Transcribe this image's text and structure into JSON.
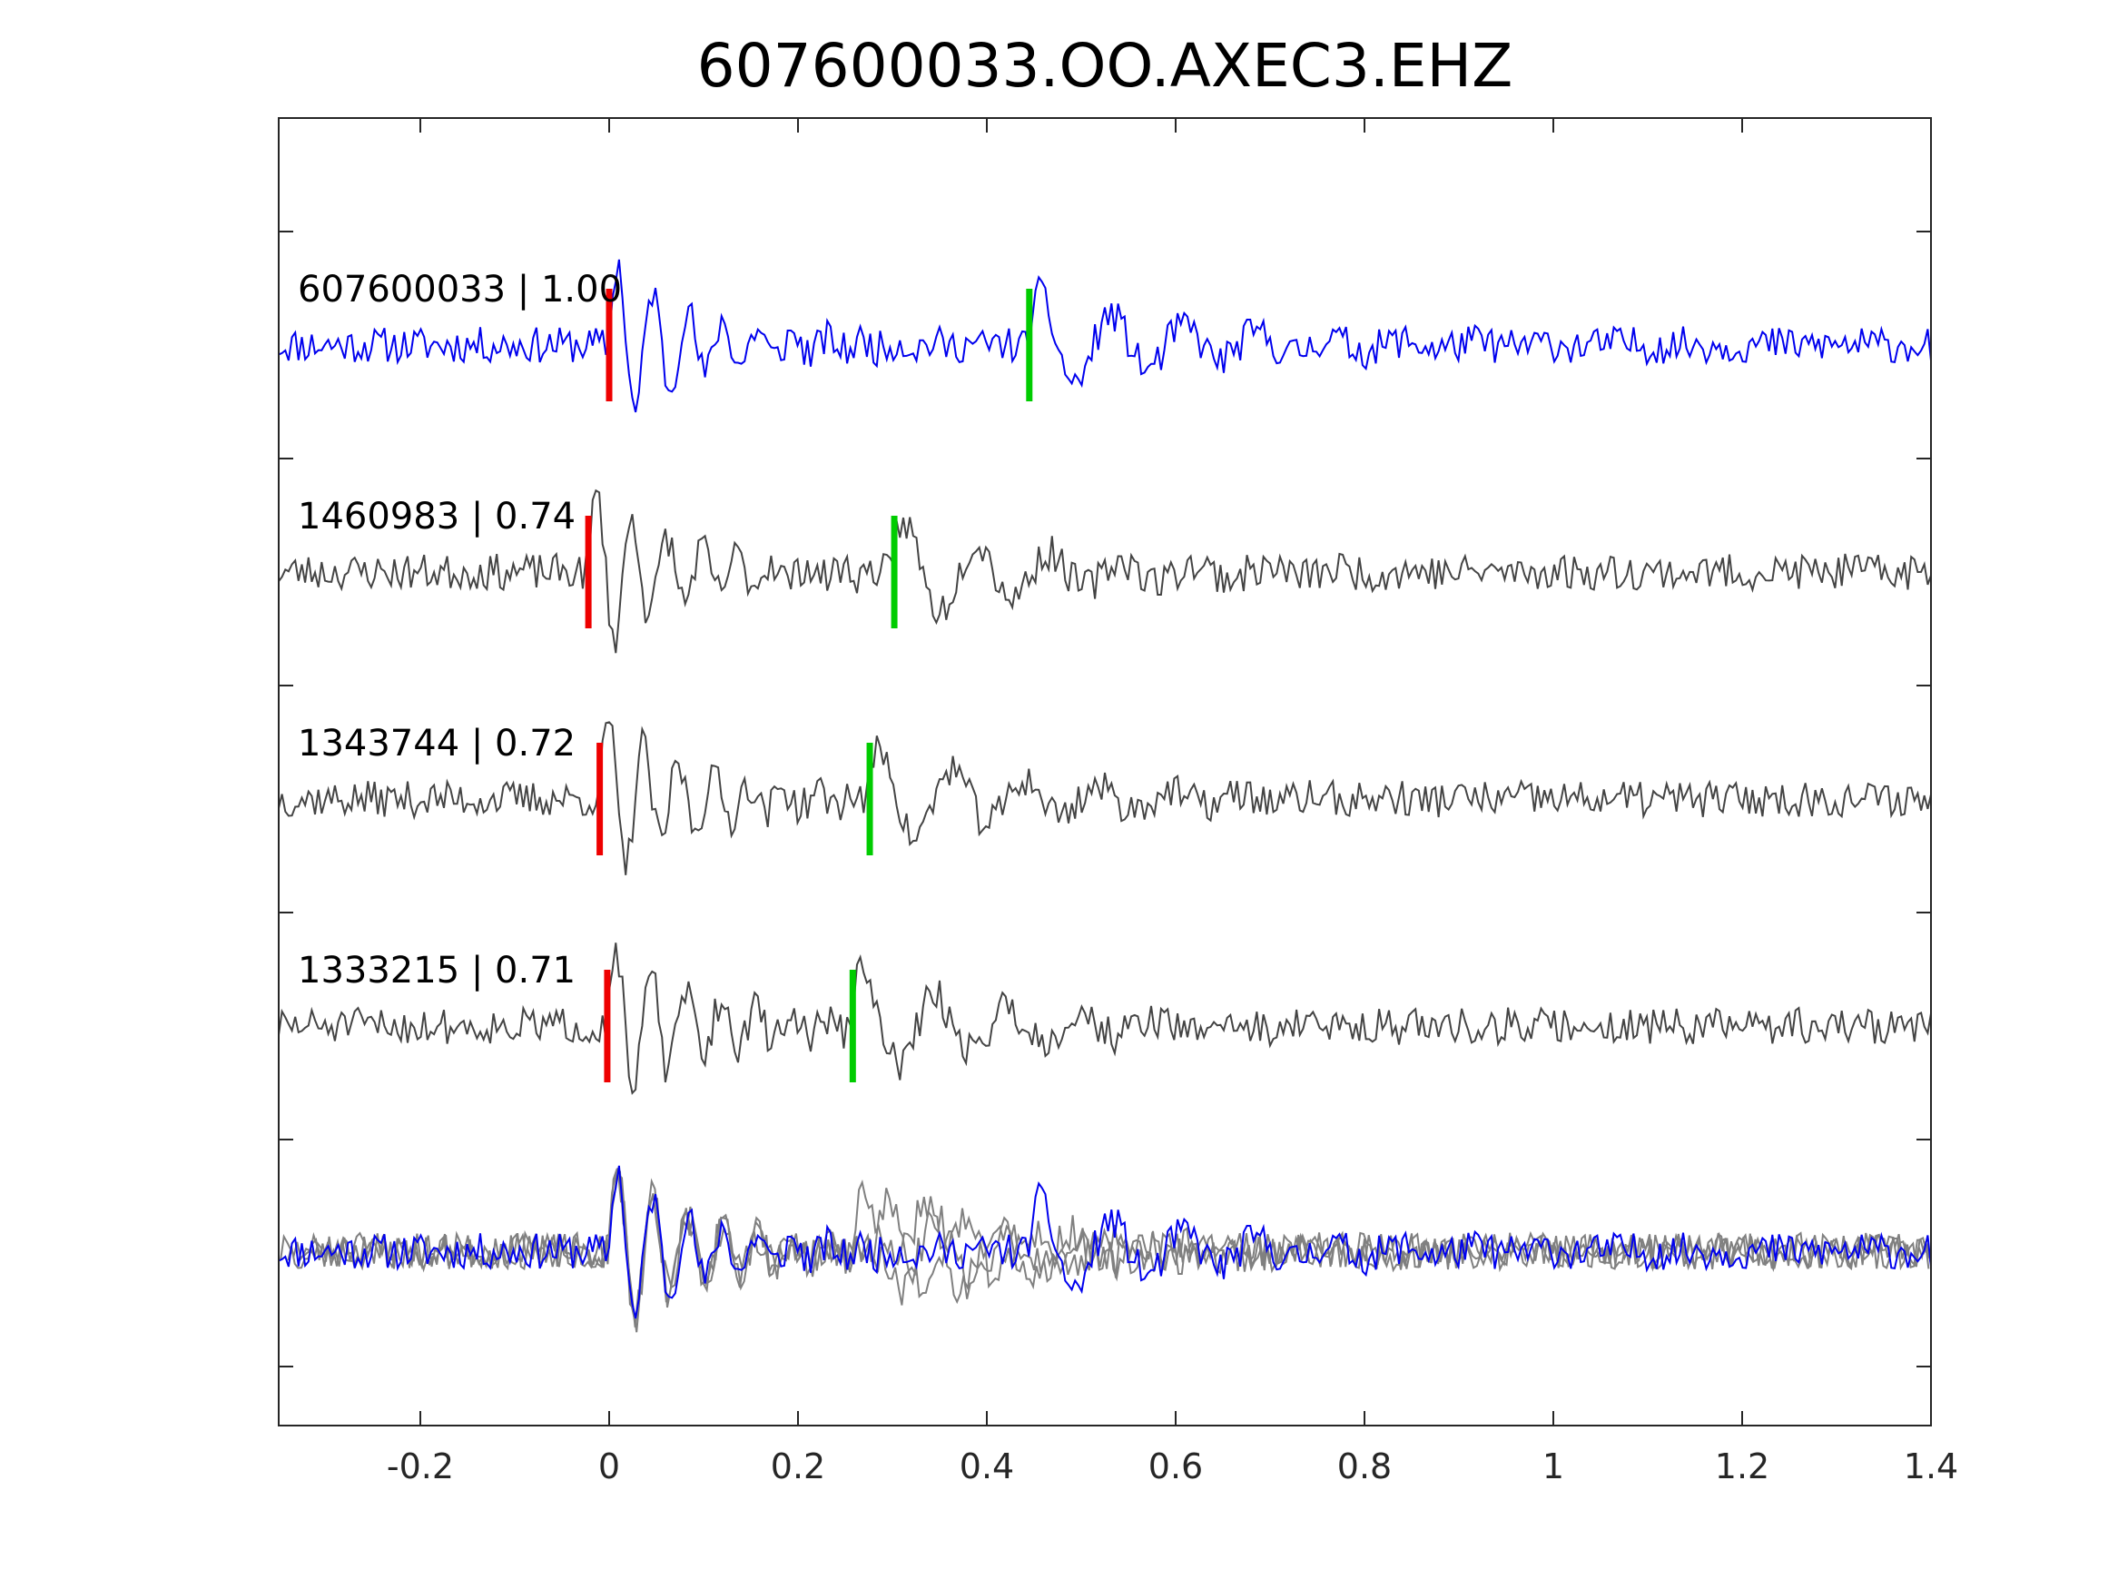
{
  "chart_data": {
    "type": "line",
    "title": "607600033.OO.AXEC3.EHZ",
    "xlabel": "",
    "ylabel": "",
    "xlim": [
      -0.35,
      1.4
    ],
    "xticks": [
      -0.2,
      0,
      0.2,
      0.4,
      0.6,
      0.8,
      1,
      1.2,
      1.4
    ],
    "xtick_labels": [
      "-0.2",
      "0",
      "0.2",
      "0.4",
      "0.6",
      "0.8",
      "1",
      "1.2",
      "1.4"
    ],
    "grid": false,
    "colors": {
      "master": "#0000ee",
      "trace": "#444444",
      "overlay_trace": "#808080",
      "p_pick": "#ee0000",
      "s_pick": "#00cc00",
      "axes": "#262626"
    },
    "traces": [
      {
        "id": "607600033",
        "cc": "1.00",
        "label": "607600033 | 1.00",
        "master": true,
        "p_time": 0.0,
        "s_time": 0.445,
        "seed": 11
      },
      {
        "id": "1460983",
        "cc": "0.74",
        "label": "1460983 | 0.74",
        "master": false,
        "p_time": -0.022,
        "s_time": 0.302,
        "seed": 23
      },
      {
        "id": "1343744",
        "cc": "0.72",
        "label": "1343744 | 0.72",
        "master": false,
        "p_time": -0.01,
        "s_time": 0.276,
        "seed": 37
      },
      {
        "id": "1333215",
        "cc": "0.71",
        "label": "1333215 | 0.71",
        "master": false,
        "p_time": -0.002,
        "s_time": 0.258,
        "seed": 51
      }
    ],
    "overlay": {
      "description": "all traces superimposed, aligned on P"
    }
  }
}
